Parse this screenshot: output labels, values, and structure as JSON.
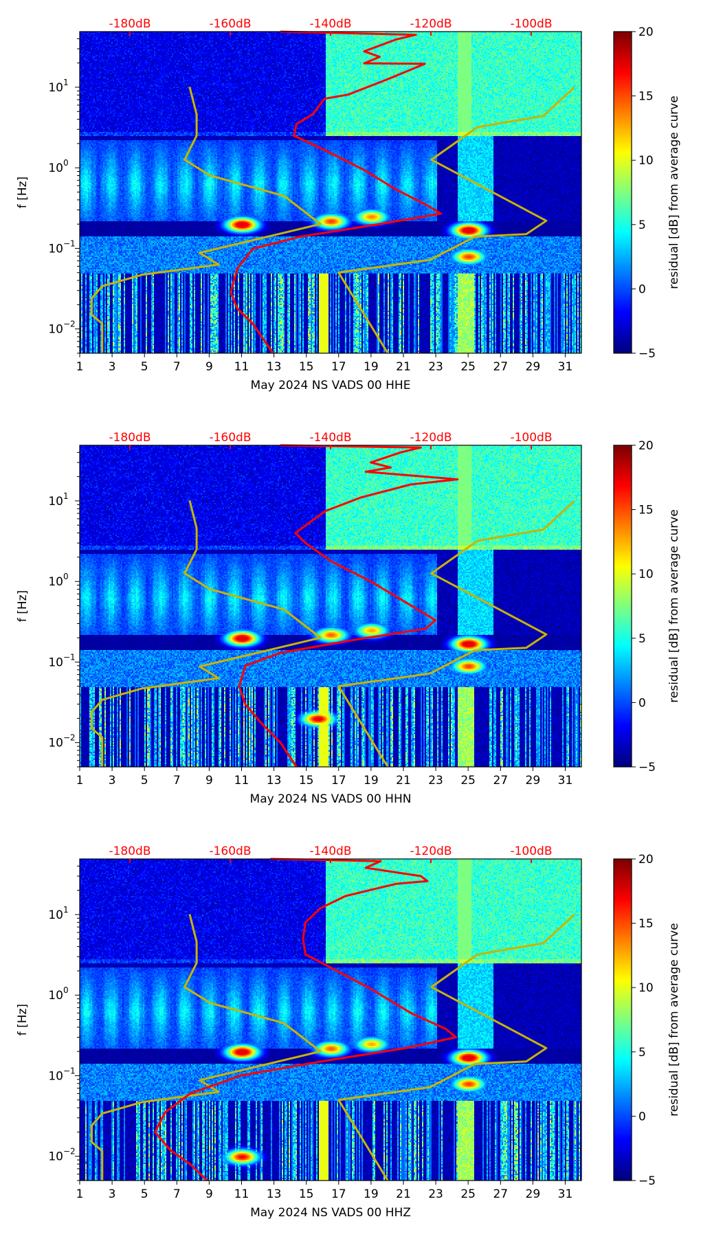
{
  "chart_data": [
    {
      "type": "heatmap",
      "xlabel": "May 2024 NS VADS 00 HHE",
      "ylabel": "f [Hz]",
      "colorbar_label": "residual [dB] from average curve",
      "xlim": [
        1,
        32
      ],
      "ylim_hz": [
        0.005,
        49
      ],
      "top_xlim_db": [
        -190,
        -90
      ],
      "color_range": [
        -5,
        20
      ],
      "x_ticks": [
        "1",
        "3",
        "5",
        "7",
        "9",
        "11",
        "13",
        "15",
        "17",
        "19",
        "21",
        "23",
        "25",
        "27",
        "29",
        "31"
      ],
      "y_ticks": [
        {
          "v": 0.01,
          "b": "10",
          "e": "−2"
        },
        {
          "v": 0.1,
          "b": "10",
          "e": "−1"
        },
        {
          "v": 1,
          "b": "10",
          "e": "0"
        },
        {
          "v": 10,
          "b": "10",
          "e": "1"
        }
      ],
      "top_ticks": [
        {
          "v": -180,
          "label": "-180dB"
        },
        {
          "v": -160,
          "label": "-160dB"
        },
        {
          "v": -140,
          "label": "-140dB"
        },
        {
          "v": -120,
          "label": "-120dB"
        },
        {
          "v": -100,
          "label": "-100dB"
        }
      ],
      "colorbar_ticks": [
        "−5",
        "0",
        "5",
        "10",
        "15",
        "20"
      ],
      "psd_curve": {
        "color": "#ff0000",
        "points_db_hz": [
          [
            -150,
            49
          ],
          [
            -123,
            44.8
          ],
          [
            -127,
            39
          ],
          [
            -133.3,
            27.9
          ],
          [
            -130.2,
            23.8
          ],
          [
            -133.3,
            19.8
          ],
          [
            -121.2,
            19.5
          ],
          [
            -128.6,
            12.6
          ],
          [
            -136.5,
            8.1
          ],
          [
            -141.2,
            7.2
          ],
          [
            -143.6,
            4.6
          ],
          [
            -146.8,
            3.5
          ],
          [
            -147.3,
            2.5
          ],
          [
            -141.2,
            1.66
          ],
          [
            -133.3,
            0.94
          ],
          [
            -127,
            0.54
          ],
          [
            -120.7,
            0.34
          ],
          [
            -118,
            0.27
          ],
          [
            -130.2,
            0.2
          ],
          [
            -146,
            0.14
          ],
          [
            -155.5,
            0.099
          ],
          [
            -158.6,
            0.056
          ],
          [
            -159.9,
            0.0285
          ],
          [
            -158.6,
            0.018
          ],
          [
            -155.5,
            0.0116
          ],
          [
            -151.5,
            0.005
          ]
        ]
      },
      "hotspots": [
        [
          11,
          0.2,
          20
        ],
        [
          16.5,
          0.22,
          15
        ],
        [
          19,
          0.25,
          13
        ],
        [
          25,
          0.17,
          20
        ],
        [
          25,
          0.08,
          15
        ]
      ]
    },
    {
      "type": "heatmap",
      "xlabel": "May 2024 NS VADS 00 HHN",
      "ylabel": "f [Hz]",
      "colorbar_label": "residual [dB] from average curve",
      "xlim": [
        1,
        32
      ],
      "ylim_hz": [
        0.005,
        49
      ],
      "top_xlim_db": [
        -190,
        -90
      ],
      "color_range": [
        -5,
        20
      ],
      "x_ticks": [
        "1",
        "3",
        "5",
        "7",
        "9",
        "11",
        "13",
        "15",
        "17",
        "19",
        "21",
        "23",
        "25",
        "27",
        "29",
        "31"
      ],
      "y_ticks": [
        {
          "v": 0.01,
          "b": "10",
          "e": "−2"
        },
        {
          "v": 0.1,
          "b": "10",
          "e": "−1"
        },
        {
          "v": 1,
          "b": "10",
          "e": "0"
        },
        {
          "v": 10,
          "b": "10",
          "e": "1"
        }
      ],
      "top_ticks": [
        {
          "v": -180,
          "label": "-180dB"
        },
        {
          "v": -160,
          "label": "-160dB"
        },
        {
          "v": -140,
          "label": "-140dB"
        },
        {
          "v": -120,
          "label": "-120dB"
        },
        {
          "v": -100,
          "label": "-100dB"
        }
      ],
      "colorbar_ticks": [
        "−5",
        "0",
        "5",
        "10",
        "15",
        "20"
      ],
      "psd_curve": {
        "color": "#ff0000",
        "points_db_hz": [
          [
            -150,
            49
          ],
          [
            -122,
            46
          ],
          [
            -126,
            40
          ],
          [
            -132,
            30
          ],
          [
            -128,
            26
          ],
          [
            -133,
            23
          ],
          [
            -114.7,
            18.5
          ],
          [
            -124,
            16
          ],
          [
            -134,
            11
          ],
          [
            -141,
            7.5
          ],
          [
            -144,
            5.5
          ],
          [
            -147,
            4
          ],
          [
            -145,
            3
          ],
          [
            -140,
            1.8
          ],
          [
            -132,
            1.0
          ],
          [
            -125,
            0.55
          ],
          [
            -119.1,
            0.33
          ],
          [
            -121,
            0.26
          ],
          [
            -135,
            0.19
          ],
          [
            -150,
            0.13
          ],
          [
            -157,
            0.09
          ],
          [
            -158.2,
            0.05
          ],
          [
            -157,
            0.03
          ],
          [
            -154,
            0.018
          ],
          [
            -150,
            0.01
          ],
          [
            -146.8,
            0.005
          ]
        ]
      },
      "hotspots": [
        [
          11,
          0.2,
          20
        ],
        [
          16.5,
          0.22,
          14
        ],
        [
          19,
          0.25,
          12
        ],
        [
          25,
          0.17,
          20
        ],
        [
          25,
          0.09,
          15
        ],
        [
          15.7,
          0.02,
          18
        ]
      ]
    },
    {
      "type": "heatmap",
      "xlabel": "May 2024 NS VADS 00 HHZ",
      "ylabel": "f [Hz]",
      "colorbar_label": "residual [dB] from average curve",
      "xlim": [
        1,
        32
      ],
      "ylim_hz": [
        0.005,
        49
      ],
      "top_xlim_db": [
        -190,
        -90
      ],
      "color_range": [
        -5,
        20
      ],
      "x_ticks": [
        "1",
        "3",
        "5",
        "7",
        "9",
        "11",
        "13",
        "15",
        "17",
        "19",
        "21",
        "23",
        "25",
        "27",
        "29",
        "31"
      ],
      "y_ticks": [
        {
          "v": 0.01,
          "b": "10",
          "e": "−2"
        },
        {
          "v": 0.1,
          "b": "10",
          "e": "−1"
        },
        {
          "v": 1,
          "b": "10",
          "e": "0"
        },
        {
          "v": 10,
          "b": "10",
          "e": "1"
        }
      ],
      "top_ticks": [
        {
          "v": -180,
          "label": "-180dB"
        },
        {
          "v": -160,
          "label": "-160dB"
        },
        {
          "v": -140,
          "label": "-140dB"
        },
        {
          "v": -120,
          "label": "-120dB"
        },
        {
          "v": -100,
          "label": "-100dB"
        }
      ],
      "colorbar_ticks": [
        "−5",
        "0",
        "5",
        "10",
        "15",
        "20"
      ],
      "psd_curve": {
        "color": "#ff0000",
        "points_db_hz": [
          [
            -152,
            49
          ],
          [
            -130,
            46
          ],
          [
            -133,
            38
          ],
          [
            -122,
            30
          ],
          [
            -120.7,
            26
          ],
          [
            -127,
            24
          ],
          [
            -137,
            17
          ],
          [
            -142,
            12
          ],
          [
            -145,
            8
          ],
          [
            -145.5,
            5
          ],
          [
            -145,
            3.2
          ],
          [
            -140,
            2.2
          ],
          [
            -132,
            1.2
          ],
          [
            -124,
            0.6
          ],
          [
            -117,
            0.38
          ],
          [
            -115,
            0.3
          ],
          [
            -125,
            0.22
          ],
          [
            -142,
            0.15
          ],
          [
            -158,
            0.1
          ],
          [
            -168,
            0.06
          ],
          [
            -173,
            0.035
          ],
          [
            -175,
            0.02
          ],
          [
            -172,
            0.012
          ],
          [
            -168,
            0.008
          ],
          [
            -164.6,
            0.005
          ]
        ]
      },
      "hotspots": [
        [
          11,
          0.2,
          20
        ],
        [
          16.5,
          0.22,
          14
        ],
        [
          19,
          0.25,
          12
        ],
        [
          25,
          0.17,
          20
        ],
        [
          25,
          0.08,
          15
        ],
        [
          11,
          0.01,
          17
        ]
      ]
    }
  ],
  "noise_models": {
    "low": {
      "color": "#c8b400",
      "points_db_hz": [
        [
          -168.1,
          10.1
        ],
        [
          -166.7,
          4.6
        ],
        [
          -166.7,
          2.5
        ],
        [
          -169.1,
          1.26
        ],
        [
          -164,
          0.8
        ],
        [
          -149.3,
          0.45
        ],
        [
          -142,
          0.2
        ],
        [
          -166.1,
          0.088
        ],
        [
          -162.3,
          0.063
        ],
        [
          -177.6,
          0.047
        ],
        [
          -185.5,
          0.034
        ],
        [
          -187.6,
          0.024
        ],
        [
          -187.6,
          0.015
        ],
        [
          -185.5,
          0.0116
        ],
        [
          -185.5,
          0.005
        ]
      ]
    },
    "high": {
      "color": "#c8b400",
      "points_db_hz": [
        [
          -91.4,
          10
        ],
        [
          -97.6,
          4.4
        ],
        [
          -110.7,
          3.2
        ],
        [
          -119.9,
          1.26
        ],
        [
          -97,
          0.22
        ],
        [
          -101,
          0.15
        ],
        [
          -111.2,
          0.14
        ],
        [
          -120.2,
          0.072
        ],
        [
          -138.4,
          0.05
        ],
        [
          -128.6,
          0.005
        ]
      ]
    }
  }
}
